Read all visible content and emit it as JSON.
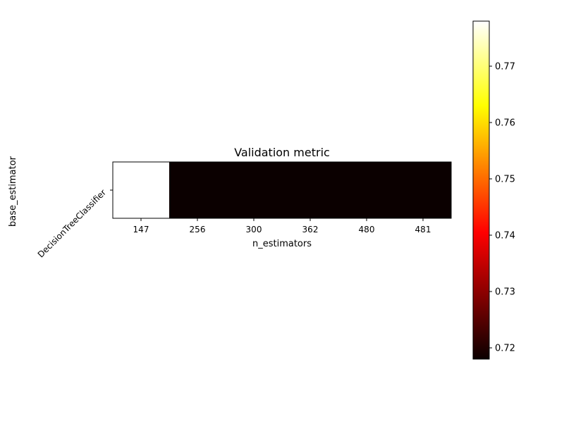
{
  "chart_data": {
    "type": "heatmap",
    "title": "Validation metric",
    "xlabel": "n_estimators",
    "ylabel": "base_estimator",
    "x_categories": [
      "147",
      "256",
      "300",
      "362",
      "480",
      "481"
    ],
    "y_categories": [
      "DecisionTreeClassifier"
    ],
    "values": [
      [
        0.778,
        0.718,
        0.718,
        0.718,
        0.718,
        0.718
      ]
    ],
    "colormap": "hot",
    "colorbar": {
      "range": [
        0.718,
        0.778
      ],
      "ticks": [
        0.72,
        0.73,
        0.74,
        0.75,
        0.76,
        0.77
      ],
      "tick_labels": [
        "0.72",
        "0.73",
        "0.74",
        "0.75",
        "0.76",
        "0.77"
      ],
      "placement": "right"
    }
  }
}
